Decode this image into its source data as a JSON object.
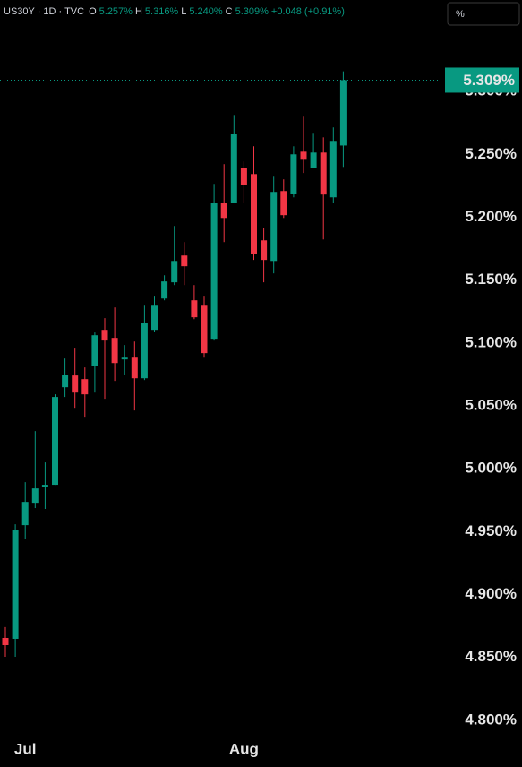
{
  "chart_data": {
    "type": "candlestick",
    "legend": {
      "symbol": "US30Y · 1D · TVC",
      "fields": [
        {
          "key": "O",
          "value": "5.257%"
        },
        {
          "key": "H",
          "value": "5.316%"
        },
        {
          "key": "L",
          "value": "5.240%"
        },
        {
          "key": "C",
          "value": "5.309%"
        }
      ],
      "change": "+0.048 (+0.91%)"
    },
    "unit_box": "%",
    "up_color": "#089981",
    "down_color": "#f23645",
    "categories": [
      null,
      null,
      "Jul",
      null,
      null,
      null,
      null,
      null,
      null,
      null,
      null,
      null,
      null,
      null,
      null,
      null,
      null,
      null,
      null,
      null,
      null,
      null,
      null,
      null,
      "Aug",
      null,
      null,
      null,
      null,
      null,
      null,
      null,
      null,
      null,
      null
    ],
    "open": [
      4.8654,
      4.8647,
      4.9551,
      4.9729,
      4.9857,
      4.9872,
      5.0648,
      5.0741,
      5.0712,
      5.0819,
      5.1104,
      5.104,
      5.0869,
      5.089,
      5.0719,
      5.1104,
      5.1353,
      5.1482,
      5.1695,
      5.1339,
      5.1303,
      5.1033,
      5.2115,
      5.2115,
      5.2393,
      5.2343,
      5.1816,
      5.1652,
      5.2208,
      5.2187,
      5.2521,
      5.2393,
      5.2514,
      5.2158,
      5.257
    ],
    "high": [
      4.874,
      4.9558,
      4.9893,
      5.0299,
      5.005,
      5.0591,
      5.0876,
      5.0962,
      5.0805,
      5.1083,
      5.1197,
      5.1282,
      5.0983,
      5.1011,
      5.1303,
      5.1375,
      5.1538,
      5.193,
      5.1802,
      5.146,
      5.1375,
      5.2265,
      5.2422,
      5.2813,
      5.2443,
      5.2564,
      5.1916,
      5.2329,
      5.2301,
      5.2564,
      5.2799,
      5.2671,
      5.2635,
      5.2714,
      5.316
    ],
    "low": [
      4.8504,
      4.8504,
      4.9444,
      4.9687,
      4.968,
      4.9872,
      5.057,
      5.0484,
      5.0413,
      5.0605,
      5.0556,
      5.0698,
      5.0748,
      5.0463,
      5.0705,
      5.109,
      5.1339,
      5.146,
      5.146,
      5.1189,
      5.089,
      5.1019,
      5.1802,
      5.2115,
      5.2115,
      5.166,
      5.1482,
      5.1553,
      5.1994,
      5.2158,
      5.2351,
      5.2393,
      5.1823,
      5.2115,
      5.24
    ],
    "close": [
      4.8597,
      4.9516,
      4.9736,
      4.9843,
      4.9872,
      5.057,
      5.0748,
      5.0605,
      5.0591,
      5.1061,
      5.1019,
      5.084,
      5.089,
      5.0719,
      5.1161,
      5.1303,
      5.1489,
      5.1652,
      5.161,
      5.1204,
      5.0919,
      5.2115,
      5.1994,
      5.2664,
      5.2258,
      5.1709,
      5.166,
      5.2201,
      5.2016,
      5.25,
      5.2457,
      5.2514,
      5.218,
      5.2607,
      5.309
    ],
    "last_price": {
      "value": 5.309,
      "label": "5.309%"
    },
    "ylim": [
      4.792,
      5.33
    ],
    "yticks": [
      {
        "value": 4.8,
        "label": "4.800%"
      },
      {
        "value": 4.85,
        "label": "4.850%"
      },
      {
        "value": 4.9,
        "label": "4.900%"
      },
      {
        "value": 4.95,
        "label": "4.950%"
      },
      {
        "value": 5.0,
        "label": "5.000%"
      },
      {
        "value": 5.05,
        "label": "5.050%"
      },
      {
        "value": 5.1,
        "label": "5.100%"
      },
      {
        "value": 5.15,
        "label": "5.150%"
      },
      {
        "value": 5.2,
        "label": "5.200%"
      },
      {
        "value": 5.25,
        "label": "5.250%"
      },
      {
        "value": 5.3,
        "label": "5.300%"
      }
    ]
  }
}
